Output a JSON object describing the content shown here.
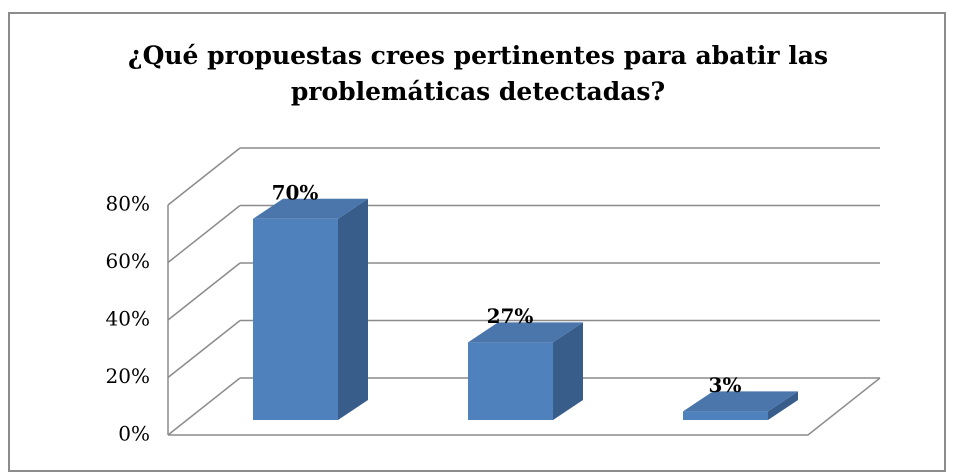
{
  "chart_data": {
    "type": "bar3d",
    "title": "¿Qué propuestas crees pertinentes para abatir las problemáticas detectadas?",
    "categories": [
      null,
      null,
      null
    ],
    "values": [
      70,
      27,
      3
    ],
    "value_labels": [
      "70%",
      "27%",
      "3%"
    ],
    "color": "#4f81bd",
    "ylim": [
      0,
      80
    ],
    "yticks": [
      {
        "value": 0,
        "label": "0%"
      },
      {
        "value": 20,
        "label": "20%"
      },
      {
        "value": 40,
        "label": "40%"
      },
      {
        "value": 60,
        "label": "60%"
      },
      {
        "value": 80,
        "label": "80%"
      }
    ],
    "grid": true
  }
}
